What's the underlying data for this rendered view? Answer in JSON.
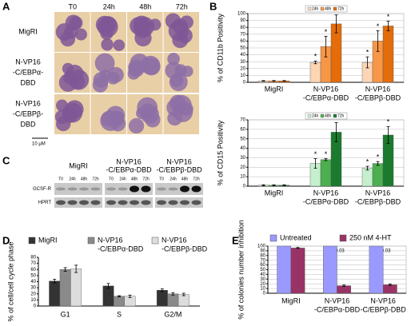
{
  "panels": [
    "A",
    "B",
    "C",
    "D",
    "E"
  ],
  "panel_a": {
    "columns": [
      "T0",
      "24h",
      "48h",
      "72h"
    ],
    "rows": [
      [
        "MigRI"
      ],
      [
        "N-VP16",
        "-C/EBPα-",
        "DBD"
      ],
      [
        "N-VP16",
        "-C/EBPβ-",
        "DBD"
      ]
    ],
    "scale": "10 μM"
  },
  "panel_c": {
    "groups": [
      [
        "MigRI"
      ],
      [
        "N-VP16",
        "-C/EBPα-DBD"
      ],
      [
        "N-VP16",
        "-C/EBPβ-DBD"
      ]
    ],
    "lanes": [
      "T0",
      "24h",
      "48h",
      "72h"
    ],
    "rows": [
      "GCSF-R",
      "HPRT"
    ]
  },
  "chart_data": [
    {
      "type": "bar",
      "ylabel": "% of CD11b Positivity",
      "categories": [
        [
          "MigRI"
        ],
        [
          "N-VP16",
          "-C/EBPα-DBD"
        ],
        [
          "N-VP16",
          "-C/EBPβ-DBD"
        ]
      ],
      "series": [
        {
          "name": "24h",
          "color": "#fcd5b4",
          "values": [
            2,
            29,
            29
          ],
          "errors": [
            0.5,
            2,
            8
          ],
          "annotations": [
            null,
            "*",
            "*"
          ]
        },
        {
          "name": "48h",
          "color": "#f79646",
          "values": [
            2,
            52,
            60
          ],
          "errors": [
            0.5,
            15,
            15
          ],
          "annotations": [
            null,
            "*",
            "*"
          ]
        },
        {
          "name": "72h",
          "color": "#e46c0a",
          "values": [
            2,
            85,
            82
          ],
          "errors": [
            0.5,
            13,
            7
          ],
          "annotations": [
            null,
            "*",
            "*"
          ]
        }
      ],
      "ylim": [
        0,
        100
      ],
      "yticks": [
        0,
        10,
        20,
        30,
        40,
        50,
        60,
        70,
        80,
        90,
        100
      ],
      "grid": true,
      "legend": "top"
    },
    {
      "type": "bar",
      "ylabel": "% of CD15 Positivity",
      "categories": [
        [
          "MigRI"
        ],
        [
          "N-VP16",
          "-C/EBPα-DBD"
        ],
        [
          "N-VP16",
          "-C/EBPβ-DBD"
        ]
      ],
      "series": [
        {
          "name": "24h",
          "color": "#c6efce",
          "values": [
            1,
            24,
            19
          ],
          "errors": [
            0.5,
            5,
            2
          ],
          "annotations": [
            null,
            "*",
            "*"
          ]
        },
        {
          "name": "48h",
          "color": "#4caf50",
          "values": [
            1,
            28,
            24
          ],
          "errors": [
            0.5,
            1,
            2
          ],
          "annotations": [
            null,
            "*",
            "*"
          ]
        },
        {
          "name": "72h",
          "color": "#1b7a2e",
          "values": [
            1,
            57,
            54
          ],
          "errors": [
            0.5,
            10,
            9
          ],
          "annotations": [
            null,
            "*",
            "*"
          ]
        }
      ],
      "ylim": [
        0,
        70
      ],
      "yticks": [
        0,
        10,
        20,
        30,
        40,
        50,
        60,
        70
      ],
      "grid": true,
      "legend": "top"
    },
    {
      "type": "bar",
      "ylabel": "% of cell/cell cycle phase",
      "categories": [
        [
          "G1"
        ],
        [
          "S"
        ],
        [
          "G2/M"
        ]
      ],
      "series": [
        {
          "name": [
            "MigRI"
          ],
          "color": "#333333",
          "values": [
            41,
            33,
            26
          ],
          "errors": [
            3,
            4,
            2
          ]
        },
        {
          "name": [
            "N-VP16",
            "-C/EBPα-DBD"
          ],
          "color": "#8a8a8a",
          "values": [
            60,
            16,
            20
          ],
          "errors": [
            3,
            1,
            2
          ]
        },
        {
          "name": [
            "N-VP16",
            "-C/EBPβ-DBD"
          ],
          "color": "#dddddd",
          "values": [
            61,
            16,
            19
          ],
          "errors": [
            6,
            2,
            2
          ]
        }
      ],
      "ylim": [
        0,
        80
      ],
      "yticks": [
        0,
        10,
        20,
        30,
        40,
        50,
        60,
        70,
        80
      ],
      "grid": false,
      "legend": "top"
    },
    {
      "type": "bar",
      "ylabel": "% of colonies number inhibition",
      "categories": [
        [
          "MigRI"
        ],
        [
          "N-VP16",
          "-C/EBPα-DBD"
        ],
        [
          "N-VP16",
          "-C/EBPβ-DBD"
        ]
      ],
      "category_annotations": [
        null,
        "p<0.03",
        "p<0.03"
      ],
      "series": [
        {
          "name": [
            "Untreated"
          ],
          "color": "#9999ff",
          "values": [
            100,
            100,
            100
          ]
        },
        {
          "name": [
            "250 nM 4-HT"
          ],
          "color": "#993366",
          "values": [
            96,
            16,
            18
          ],
          "errors": [
            1,
            1.5,
            1.5
          ]
        }
      ],
      "ylim": [
        0,
        100
      ],
      "yticks": [
        0,
        10,
        20,
        30,
        40,
        50,
        60,
        70,
        80,
        90,
        100
      ],
      "grid": true,
      "legend": "top"
    }
  ]
}
